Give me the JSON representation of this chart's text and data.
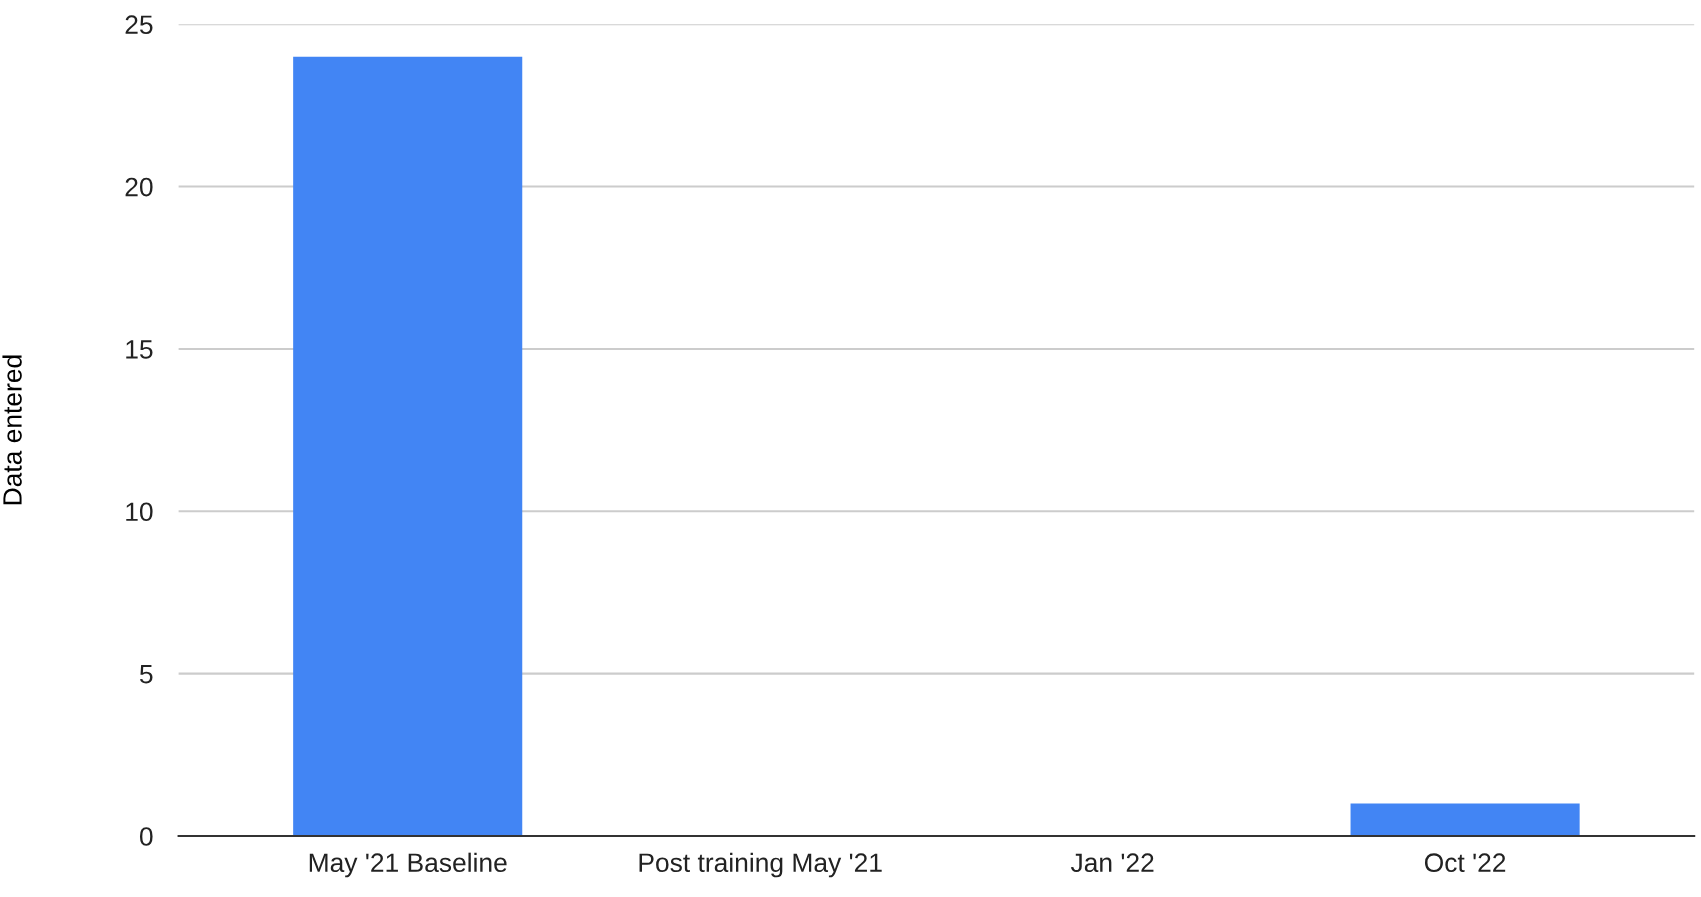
{
  "chart_data": {
    "type": "bar",
    "ylabel": "Data entered",
    "categories": [
      "May '21 Baseline",
      "Post training May '21",
      "Jan '22",
      "Oct '22"
    ],
    "values": [
      24,
      0,
      0,
      1
    ],
    "color": "#4285f4",
    "ylim": [
      0,
      25
    ],
    "yticks": [
      0,
      5,
      10,
      15,
      20,
      25
    ],
    "grid": "y",
    "legend": false
  }
}
